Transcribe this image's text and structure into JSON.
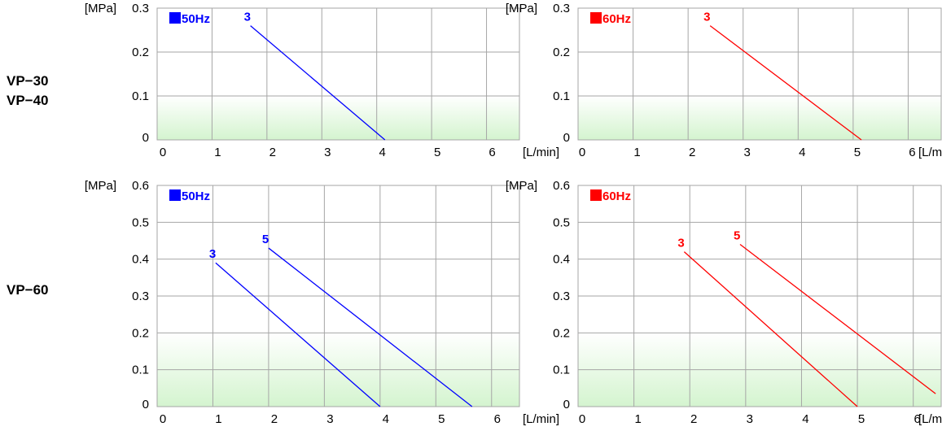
{
  "models": [
    {
      "lines": [
        "VP−30",
        "VP−40"
      ]
    },
    {
      "lines": [
        "VP−60"
      ]
    }
  ],
  "colors": {
    "50Hz": "#0000ff",
    "60Hz": "#ff0000",
    "grid": "#a6a6a6",
    "fill": "#d4f4cf"
  },
  "chart_data": [
    {
      "type": "line",
      "legend": "50Hz",
      "color": "#0000ff",
      "y_unit": "[MPa]",
      "x_unit": "[L/min]",
      "xlim": [
        0,
        6.5
      ],
      "ylim": [
        0,
        0.3
      ],
      "xticks": [
        "0",
        "1",
        "2",
        "3",
        "4",
        "5",
        "6"
      ],
      "yticks": [
        "0",
        "0.1",
        "0.2",
        "0.3"
      ],
      "series": [
        {
          "name": "3",
          "x": [
            1.7,
            4.15
          ],
          "y": [
            0.26,
            0
          ]
        }
      ]
    },
    {
      "type": "line",
      "legend": "60Hz",
      "color": "#ff0000",
      "y_unit": "[MPa]",
      "x_unit": "[L/min]",
      "xlim": [
        0,
        6.5
      ],
      "ylim": [
        0,
        0.3
      ],
      "xticks": [
        "0",
        "1",
        "2",
        "3",
        "4",
        "5",
        "6"
      ],
      "yticks": [
        "0",
        "0.1",
        "0.2",
        "0.3"
      ],
      "series": [
        {
          "name": "3",
          "x": [
            2.4,
            5.15
          ],
          "y": [
            0.26,
            0
          ]
        }
      ]
    },
    {
      "type": "line",
      "legend": "50Hz",
      "color": "#0000ff",
      "y_unit": "[MPa]",
      "x_unit": "[L/min]",
      "xlim": [
        0,
        6.5
      ],
      "ylim": [
        0,
        0.6
      ],
      "xticks": [
        "0",
        "1",
        "2",
        "3",
        "4",
        "5",
        "6"
      ],
      "yticks": [
        "0",
        "0.1",
        "0.2",
        "0.3",
        "0.4",
        "0.5",
        "0.6"
      ],
      "series": [
        {
          "name": "3",
          "x": [
            1.05,
            4.0
          ],
          "y": [
            0.39,
            0
          ]
        },
        {
          "name": "5",
          "x": [
            2.0,
            5.65
          ],
          "y": [
            0.43,
            0
          ]
        }
      ]
    },
    {
      "type": "line",
      "legend": "60Hz",
      "color": "#ff0000",
      "y_unit": "[MPa]",
      "x_unit": "[L/min]",
      "xlim": [
        0,
        6.5
      ],
      "ylim": [
        0,
        0.6
      ],
      "xticks": [
        "0",
        "1",
        "2",
        "3",
        "4",
        "5",
        "6"
      ],
      "yticks": [
        "0",
        "0.1",
        "0.2",
        "0.3",
        "0.4",
        "0.5",
        "0.6"
      ],
      "series": [
        {
          "name": "3",
          "x": [
            1.9,
            5.0
          ],
          "y": [
            0.42,
            0
          ]
        },
        {
          "name": "5",
          "x": [
            2.9,
            6.4
          ],
          "y": [
            0.44,
            0.035
          ]
        }
      ]
    }
  ]
}
